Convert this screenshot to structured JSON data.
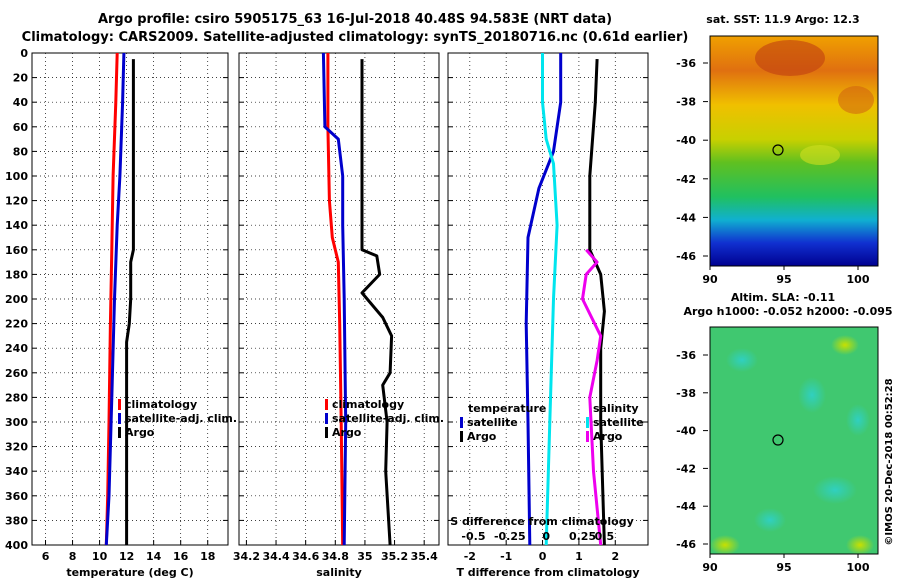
{
  "header": {
    "line1": "Argo profile: csiro 5905175_63 16-Jul-2018 40.48S 94.583E (NRT data)",
    "line2": "Climatology: CARS2009. Satellite-adjusted climatology: synTS_20180716.nc (0.61d earlier)"
  },
  "timestamp": "©IMOS 20-Dec-2018 00:52:28",
  "colors": {
    "climatology": "#ff0000",
    "satellite": "#0000cc",
    "argo": "#000000",
    "satellite_salinity": "#00e5ee",
    "argo_salinity": "#ee00ee"
  },
  "chart_data": [
    {
      "id": "temperature",
      "type": "line",
      "xlabel": "temperature (deg C)",
      "ylabel": "",
      "xlim": [
        5,
        19.5
      ],
      "ylim": [
        400,
        0
      ],
      "xticks": [
        "6",
        "8",
        "10",
        "12",
        "14",
        "16",
        "18"
      ],
      "xtick_values": [
        6,
        8,
        10,
        12,
        14,
        16,
        18
      ],
      "yticks": [
        "0",
        "20",
        "40",
        "60",
        "80",
        "100",
        "120",
        "140",
        "160",
        "180",
        "200",
        "220",
        "240",
        "260",
        "280",
        "300",
        "320",
        "340",
        "360",
        "380",
        "400"
      ],
      "legend": [
        "climatology",
        "satellite-adj. clim.",
        "Argo"
      ],
      "series": [
        {
          "name": "climatology",
          "color": "#ff0000",
          "points": [
            [
              11.3,
              0
            ],
            [
              11.2,
              40
            ],
            [
              11.0,
              100
            ],
            [
              10.9,
              160
            ],
            [
              10.8,
              220
            ],
            [
              10.7,
              300
            ],
            [
              10.6,
              360
            ],
            [
              10.5,
              400
            ]
          ]
        },
        {
          "name": "satellite-adj. clim.",
          "color": "#0000cc",
          "points": [
            [
              11.8,
              0
            ],
            [
              11.7,
              40
            ],
            [
              11.5,
              100
            ],
            [
              11.3,
              140
            ],
            [
              11.1,
              200
            ],
            [
              10.9,
              280
            ],
            [
              10.7,
              360
            ],
            [
              10.5,
              400
            ]
          ]
        },
        {
          "name": "Argo",
          "color": "#000000",
          "points": [
            [
              12.5,
              5
            ],
            [
              12.5,
              160
            ],
            [
              12.3,
              170
            ],
            [
              12.3,
              200
            ],
            [
              12.2,
              220
            ],
            [
              12.0,
              235
            ],
            [
              12.0,
              400
            ]
          ]
        }
      ]
    },
    {
      "id": "salinity",
      "type": "line",
      "xlabel": "salinity",
      "ylabel": "",
      "xlim": [
        34.15,
        35.5
      ],
      "ylim": [
        400,
        0
      ],
      "xticks": [
        "34.2",
        "34.4",
        "34.6",
        "34.8",
        "35",
        "35.2",
        "35.4"
      ],
      "xtick_values": [
        34.2,
        34.4,
        34.6,
        34.8,
        35.0,
        35.2,
        35.4
      ],
      "legend": [
        "climatology",
        "satellite-adj. clim.",
        "Argo"
      ],
      "series": [
        {
          "name": "climatology",
          "color": "#ff0000",
          "points": [
            [
              34.75,
              0
            ],
            [
              34.75,
              60
            ],
            [
              34.76,
              120
            ],
            [
              34.78,
              150
            ],
            [
              34.82,
              170
            ],
            [
              34.83,
              220
            ],
            [
              34.84,
              300
            ],
            [
              34.85,
              400
            ]
          ]
        },
        {
          "name": "satellite-adj. clim.",
          "color": "#0000cc",
          "points": [
            [
              34.72,
              0
            ],
            [
              34.73,
              60
            ],
            [
              34.82,
              70
            ],
            [
              34.85,
              100
            ],
            [
              34.85,
              140
            ],
            [
              34.86,
              200
            ],
            [
              34.87,
              300
            ],
            [
              34.86,
              400
            ]
          ]
        },
        {
          "name": "Argo",
          "color": "#000000",
          "points": [
            [
              34.98,
              5
            ],
            [
              34.98,
              160
            ],
            [
              35.08,
              165
            ],
            [
              35.1,
              180
            ],
            [
              34.98,
              195
            ],
            [
              35.12,
              215
            ],
            [
              35.18,
              230
            ],
            [
              35.17,
              260
            ],
            [
              35.12,
              270
            ],
            [
              35.15,
              300
            ],
            [
              35.14,
              340
            ],
            [
              35.17,
              400
            ]
          ]
        }
      ]
    },
    {
      "id": "difference",
      "type": "line",
      "xlabel": "T difference from climatology",
      "xlabel2": "S difference from climatology",
      "xlim": [
        -2.6,
        2.9
      ],
      "ylim": [
        400,
        0
      ],
      "xticks": [
        "-2",
        "-1",
        "0",
        "1",
        "2"
      ],
      "xtick_values": [
        -2,
        -1,
        0,
        1,
        2
      ],
      "xticks_top": [
        "-0.5",
        "-0.25",
        "0",
        "0.25",
        "0.5"
      ],
      "xtick_top_values": [
        -1.9,
        -0.9,
        0.1,
        1.1,
        1.7
      ],
      "legend_left": [
        "temperature",
        "satellite",
        "Argo"
      ],
      "legend_right": [
        "salinity",
        "satellite",
        "Argo"
      ],
      "series": [
        {
          "name": "temperature satellite",
          "color": "#0000cc",
          "points": [
            [
              0.5,
              0
            ],
            [
              0.5,
              40
            ],
            [
              0.3,
              80
            ],
            [
              -0.1,
              110
            ],
            [
              -0.4,
              150
            ],
            [
              -0.45,
              220
            ],
            [
              -0.4,
              300
            ],
            [
              -0.35,
              400
            ]
          ]
        },
        {
          "name": "temperature Argo",
          "color": "#000000",
          "points": [
            [
              1.5,
              5
            ],
            [
              1.45,
              40
            ],
            [
              1.3,
              100
            ],
            [
              1.3,
              160
            ],
            [
              1.6,
              180
            ],
            [
              1.7,
              210
            ],
            [
              1.6,
              240
            ],
            [
              1.6,
              300
            ],
            [
              1.7,
              400
            ]
          ]
        },
        {
          "name": "salinity satellite",
          "color": "#00e5ee",
          "points": [
            [
              0.0,
              0
            ],
            [
              0.0,
              40
            ],
            [
              0.1,
              70
            ],
            [
              0.3,
              90
            ],
            [
              0.4,
              140
            ],
            [
              0.3,
              200
            ],
            [
              0.2,
              300
            ],
            [
              0.1,
              400
            ]
          ]
        },
        {
          "name": "salinity Argo",
          "color": "#ee00ee",
          "points": [
            [
              1.2,
              160
            ],
            [
              1.5,
              170
            ],
            [
              1.2,
              180
            ],
            [
              1.1,
              200
            ],
            [
              1.6,
              230
            ],
            [
              1.5,
              250
            ],
            [
              1.3,
              280
            ],
            [
              1.4,
              340
            ],
            [
              1.6,
              400
            ]
          ]
        }
      ]
    }
  ],
  "maps": {
    "sst": {
      "title": "sat. SST: 11.9 Argo: 12.3",
      "xticks": [
        "90",
        "95",
        "100"
      ],
      "yticks": [
        "-36",
        "-38",
        "-40",
        "-42",
        "-44",
        "-46"
      ]
    },
    "sla": {
      "title1": "Altim. SLA: -0.11",
      "title2": "Argo h1000: -0.052 h2000: -0.095",
      "xticks": [
        "90",
        "95",
        "100"
      ],
      "yticks": [
        "-36",
        "-38",
        "-40",
        "-42",
        "-44",
        "-46"
      ]
    }
  }
}
